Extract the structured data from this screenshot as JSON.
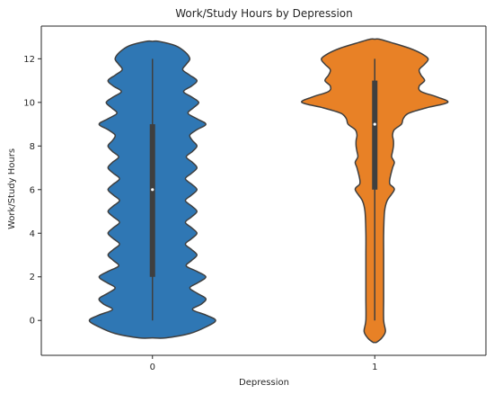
{
  "chart_data": {
    "type": "violin",
    "title": "Work/Study Hours by Depression",
    "xlabel": "Depression",
    "ylabel": "Work/Study Hours",
    "ylim": [
      -1.6,
      13.5
    ],
    "yticks": [
      0,
      2,
      4,
      6,
      8,
      10,
      12
    ],
    "grid": false,
    "categories": [
      "0",
      "1"
    ],
    "series": [
      {
        "category": "0",
        "color": "#2f77b4",
        "min": 0,
        "q1": 2,
        "median": 6,
        "q3": 9,
        "max": 12,
        "density_extent": [
          -0.8,
          12.8
        ],
        "density": [
          [
            -0.8,
            0.15
          ],
          [
            -0.6,
            0.42
          ],
          [
            -0.3,
            0.6
          ],
          [
            0.0,
            0.71
          ],
          [
            0.25,
            0.6
          ],
          [
            0.5,
            0.45
          ],
          [
            0.75,
            0.55
          ],
          [
            1.0,
            0.6
          ],
          [
            1.25,
            0.5
          ],
          [
            1.5,
            0.42
          ],
          [
            1.75,
            0.52
          ],
          [
            2.0,
            0.6
          ],
          [
            2.25,
            0.5
          ],
          [
            2.5,
            0.38
          ],
          [
            2.75,
            0.44
          ],
          [
            3.0,
            0.5
          ],
          [
            3.25,
            0.44
          ],
          [
            3.5,
            0.37
          ],
          [
            3.75,
            0.44
          ],
          [
            4.0,
            0.5
          ],
          [
            4.25,
            0.44
          ],
          [
            4.5,
            0.37
          ],
          [
            4.75,
            0.44
          ],
          [
            5.0,
            0.5
          ],
          [
            5.25,
            0.44
          ],
          [
            5.5,
            0.37
          ],
          [
            5.75,
            0.44
          ],
          [
            6.0,
            0.5
          ],
          [
            6.25,
            0.44
          ],
          [
            6.5,
            0.37
          ],
          [
            6.75,
            0.44
          ],
          [
            7.0,
            0.5
          ],
          [
            7.25,
            0.45
          ],
          [
            7.5,
            0.38
          ],
          [
            7.75,
            0.45
          ],
          [
            8.0,
            0.5
          ],
          [
            8.25,
            0.45
          ],
          [
            8.5,
            0.42
          ],
          [
            8.75,
            0.5
          ],
          [
            9.0,
            0.6
          ],
          [
            9.25,
            0.5
          ],
          [
            9.5,
            0.4
          ],
          [
            9.75,
            0.46
          ],
          [
            10.0,
            0.52
          ],
          [
            10.25,
            0.44
          ],
          [
            10.5,
            0.35
          ],
          [
            10.75,
            0.44
          ],
          [
            11.0,
            0.5
          ],
          [
            11.25,
            0.42
          ],
          [
            11.5,
            0.34
          ],
          [
            11.75,
            0.38
          ],
          [
            12.0,
            0.42
          ],
          [
            12.3,
            0.37
          ],
          [
            12.6,
            0.26
          ],
          [
            12.8,
            0.07
          ]
        ]
      },
      {
        "category": "1",
        "color": "#e88126",
        "min": 0,
        "q1": 6,
        "median": 9,
        "q3": 11,
        "max": 12,
        "density_extent": [
          -1.0,
          12.9
        ],
        "density": [
          [
            -1.0,
            0.02
          ],
          [
            -0.8,
            0.08
          ],
          [
            -0.5,
            0.12
          ],
          [
            0.0,
            0.1
          ],
          [
            1.0,
            0.1
          ],
          [
            2.0,
            0.1
          ],
          [
            3.0,
            0.1
          ],
          [
            4.0,
            0.1
          ],
          [
            5.0,
            0.11
          ],
          [
            5.5,
            0.14
          ],
          [
            6.0,
            0.22
          ],
          [
            6.25,
            0.17
          ],
          [
            6.5,
            0.17
          ],
          [
            7.0,
            0.2
          ],
          [
            7.25,
            0.22
          ],
          [
            7.5,
            0.19
          ],
          [
            7.75,
            0.2
          ],
          [
            8.0,
            0.21
          ],
          [
            8.25,
            0.21
          ],
          [
            8.5,
            0.2
          ],
          [
            8.75,
            0.22
          ],
          [
            9.0,
            0.3
          ],
          [
            9.25,
            0.32
          ],
          [
            9.5,
            0.38
          ],
          [
            9.75,
            0.58
          ],
          [
            10.0,
            0.82
          ],
          [
            10.25,
            0.7
          ],
          [
            10.5,
            0.52
          ],
          [
            10.75,
            0.5
          ],
          [
            11.0,
            0.56
          ],
          [
            11.25,
            0.52
          ],
          [
            11.5,
            0.5
          ],
          [
            11.75,
            0.56
          ],
          [
            12.0,
            0.6
          ],
          [
            12.25,
            0.52
          ],
          [
            12.5,
            0.38
          ],
          [
            12.75,
            0.18
          ],
          [
            12.9,
            0.05
          ]
        ]
      }
    ]
  }
}
